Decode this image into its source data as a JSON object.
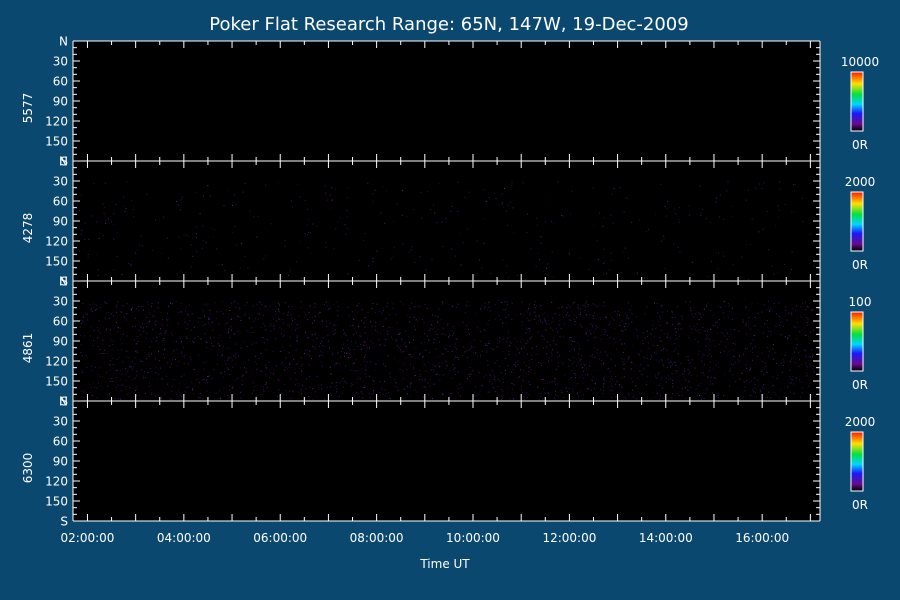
{
  "chart_data": {
    "type": "heatmap",
    "title": "Poker Flat Research Range: 65N, 147W, 19-Dec-2009",
    "xlabel": "Time UT",
    "x_ticks": [
      "02:00:00",
      "04:00:00",
      "06:00:00",
      "08:00:00",
      "10:00:00",
      "12:00:00",
      "14:00:00",
      "16:00:00"
    ],
    "x_range_hours": [
      1.7,
      17.2
    ],
    "y_tick_labels": [
      "N",
      "30",
      "60",
      "90",
      "120",
      "150",
      "S"
    ],
    "y_range_deg": [
      0,
      180
    ],
    "colorbar_scale": "rainbow (black-purple-blue-cyan-green-yellow-red)",
    "panels": [
      {
        "wavelength": "5577",
        "cbar_max": "10000",
        "cbar_min": "0R",
        "mean_intensity_fraction": 0.0
      },
      {
        "wavelength": "4278",
        "cbar_max": "2000",
        "cbar_min": "0R",
        "mean_intensity_fraction": 0.02
      },
      {
        "wavelength": "4861",
        "cbar_max": "100",
        "cbar_min": "0R",
        "mean_intensity_fraction": 0.12
      },
      {
        "wavelength": "6300",
        "cbar_max": "2000",
        "cbar_min": "0R",
        "mean_intensity_fraction": 0.0
      }
    ]
  },
  "colors": {
    "page_background": "#0b4870",
    "plot_background": "#000000",
    "axis": "#ffffff"
  }
}
